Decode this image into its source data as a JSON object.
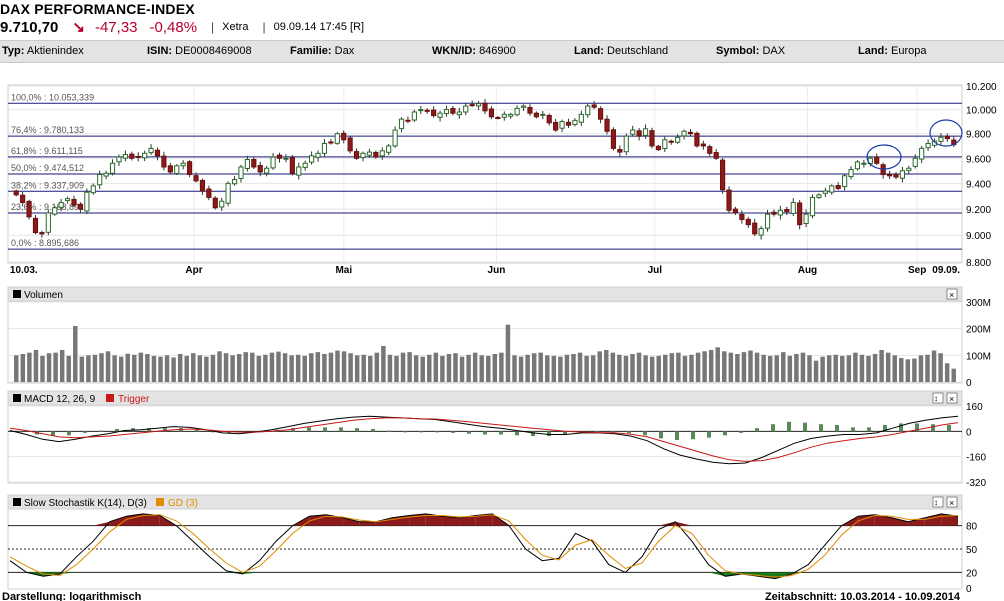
{
  "header": {
    "title": "DAX PERFORMANCE-INDEX",
    "price": "9.710,70",
    "change": "-47,33",
    "change_pct": "-0,48%",
    "exchange": "Xetra",
    "datetime": "09.09.14 17:45 [R]",
    "down_color": "#b8002d"
  },
  "infobar": [
    {
      "label": "Typ:",
      "value": "Aktienindex"
    },
    {
      "label": "ISIN:",
      "value": "DE0008469008"
    },
    {
      "label": "Familie:",
      "value": "Dax"
    },
    {
      "label": "WKN/ID:",
      "value": "846900"
    },
    {
      "label": "Land:",
      "value": "Deutschland"
    },
    {
      "label": "Symbol:",
      "value": "DAX"
    },
    {
      "label": "Land:",
      "value": "Europa"
    }
  ],
  "footer": {
    "scale_label": "Darstellung: logarithmisch",
    "period_label": "Zeitabschnitt: 10.03.2014 - 10.09.2014"
  },
  "icons": [
    "close-icon",
    "expand-icon"
  ],
  "chart_data": [
    {
      "type": "candlestick",
      "x_labels": [
        "10.03.",
        "Apr",
        "Mai",
        "Jun",
        "Jul",
        "Aug",
        "Sep",
        "09.09."
      ],
      "yticks": [
        "10.200",
        "10.000",
        "9.800",
        "9.600",
        "9.400",
        "9.200",
        "9.000",
        "8.800"
      ],
      "ylim": [
        8800,
        10200
      ],
      "scale": "log",
      "fib_levels": [
        {
          "label": "100,0% : 10.053,339",
          "value": 10053.339
        },
        {
          "label": "76,4% : 9.780,133",
          "value": 9780.133
        },
        {
          "label": "61,8% : 9.611,115",
          "value": 9611.115
        },
        {
          "label": "50,0% : 9.474,512",
          "value": 9474.512
        },
        {
          "label": "38,2% : 9.337,909",
          "value": 9337.909
        },
        {
          "label": "23,6% : 9.168,891",
          "value": 9168.891
        },
        {
          "label": "0,0% : 8.895,686",
          "value": 8895.686
        }
      ],
      "closes": [
        9310,
        9250,
        9140,
        9020,
        9010,
        9170,
        9210,
        9250,
        9280,
        9230,
        9200,
        9330,
        9380,
        9470,
        9480,
        9560,
        9610,
        9630,
        9600,
        9610,
        9640,
        9680,
        9620,
        9530,
        9490,
        9540,
        9560,
        9470,
        9420,
        9340,
        9290,
        9210,
        9260,
        9400,
        9430,
        9530,
        9590,
        9530,
        9490,
        9520,
        9610,
        9600,
        9600,
        9480,
        9530,
        9560,
        9620,
        9640,
        9720,
        9730,
        9800,
        9750,
        9660,
        9600,
        9640,
        9650,
        9610,
        9660,
        9700,
        9830,
        9920,
        9910,
        9980,
        10000,
        9990,
        9950,
        9970,
        10000,
        9970,
        9980,
        10030,
        10040,
        10050,
        9990,
        9940,
        9930,
        9960,
        9960,
        10010,
        10030,
        9970,
        9940,
        9960,
        9890,
        9830,
        9900,
        9870,
        9910,
        9960,
        10030,
        10020,
        9920,
        9820,
        9680,
        9650,
        9780,
        9830,
        9780,
        9840,
        9700,
        9670,
        9750,
        9730,
        9770,
        9820,
        9800,
        9700,
        9700,
        9640,
        9600,
        9350,
        9190,
        9170,
        9120,
        9080,
        9010,
        9050,
        9160,
        9160,
        9190,
        9180,
        9250,
        9080,
        9160,
        9290,
        9310,
        9340,
        9380,
        9360,
        9460,
        9510,
        9570,
        9560,
        9600,
        9560,
        9470,
        9460,
        9450,
        9500,
        9520,
        9600,
        9680,
        9720,
        9740,
        9770,
        9760,
        9710
      ],
      "highlight_circles": 2
    },
    {
      "type": "bar",
      "title": "Volumen",
      "yticks": [
        "300M",
        "200M",
        "100M",
        "0"
      ],
      "ylim": [
        0,
        300
      ],
      "values": [
        100,
        105,
        110,
        120,
        98,
        108,
        110,
        120,
        98,
        210,
        95,
        100,
        102,
        108,
        115,
        100,
        95,
        106,
        102,
        110,
        105,
        98,
        95,
        100,
        92,
        105,
        98,
        108,
        100,
        95,
        102,
        115,
        108,
        100,
        105,
        112,
        110,
        98,
        102,
        110,
        114,
        108,
        100,
        102,
        98,
        108,
        112,
        105,
        110,
        118,
        115,
        108,
        100,
        102,
        98,
        110,
        135,
        102,
        98,
        110,
        112,
        100,
        95,
        102,
        110,
        98,
        105,
        108,
        95,
        102,
        110,
        100,
        98,
        105,
        110,
        215,
        100,
        95,
        102,
        108,
        110,
        100,
        98,
        95,
        102,
        105,
        110,
        98,
        100,
        115,
        120,
        110,
        102,
        98,
        105,
        110,
        100,
        95,
        98,
        102,
        108,
        110,
        98,
        102,
        110,
        115,
        120,
        130,
        115,
        110,
        105,
        112,
        118,
        110,
        102,
        98,
        100,
        112,
        98,
        105,
        110,
        100,
        80,
        95,
        100,
        102,
        98,
        100,
        110,
        102,
        98,
        105,
        120,
        110,
        100,
        90,
        85,
        88,
        100,
        102,
        118,
        108,
        70,
        50
      ]
    },
    {
      "type": "line",
      "title": "MACD 12, 26, 9",
      "legend": [
        "MACD 12, 26, 9",
        "Trigger"
      ],
      "yticks": [
        "160",
        "0",
        "-160",
        "-320"
      ],
      "ylim": [
        -320,
        160
      ],
      "series": [
        {
          "name": "MACD 12, 26, 9",
          "color": "#000000",
          "values": [
            5,
            -20,
            -50,
            -65,
            -50,
            -30,
            -15,
            5,
            10,
            20,
            30,
            25,
            10,
            -10,
            -15,
            -5,
            10,
            30,
            50,
            65,
            80,
            90,
            95,
            90,
            85,
            80,
            75,
            60,
            45,
            30,
            20,
            5,
            -10,
            -20,
            -20,
            -10,
            -10,
            -15,
            -30,
            -60,
            -110,
            -150,
            -175,
            -195,
            -205,
            -200,
            -165,
            -120,
            -75,
            -45,
            -30,
            -20,
            -20,
            -10,
            20,
            50,
            70,
            85,
            95
          ]
        },
        {
          "name": "Trigger",
          "color": "#c81818",
          "values": [
            20,
            5,
            -15,
            -35,
            -40,
            -35,
            -30,
            -20,
            -10,
            0,
            10,
            15,
            10,
            0,
            -5,
            -5,
            0,
            10,
            25,
            40,
            55,
            70,
            80,
            85,
            85,
            80,
            78,
            70,
            60,
            50,
            40,
            30,
            20,
            10,
            0,
            -5,
            -8,
            -10,
            -18,
            -35,
            -65,
            -95,
            -125,
            -155,
            -180,
            -190,
            -185,
            -165,
            -135,
            -100,
            -75,
            -60,
            -45,
            -35,
            -20,
            0,
            20,
            40,
            55
          ]
        }
      ],
      "histogram": [
        -5,
        -20,
        -30,
        -25,
        -10,
        5,
        15,
        20,
        20,
        20,
        20,
        10,
        0,
        -10,
        -10,
        0,
        10,
        20,
        25,
        25,
        25,
        20,
        15,
        5,
        0,
        0,
        -3,
        -10,
        -15,
        -20,
        -20,
        -25,
        -30,
        -30,
        -20,
        -5,
        -2,
        -5,
        -12,
        -25,
        -45,
        -55,
        -50,
        -40,
        -25,
        -10,
        20,
        45,
        60,
        55,
        45,
        40,
        25,
        25,
        40,
        50,
        50,
        45,
        40
      ]
    },
    {
      "type": "line",
      "title": "Slow Stochastik K(14), D(3)",
      "legend": [
        "Slow Stochastik K(14), D(3)",
        "GD (3)"
      ],
      "yticks": [
        "80",
        "50",
        "20",
        "0"
      ],
      "ylim": [
        0,
        100
      ],
      "levels": [
        80,
        50,
        20
      ],
      "series": [
        {
          "name": "Slow Stochastik K(14), D(3)",
          "color": "#000000",
          "values": [
            35,
            20,
            15,
            18,
            40,
            60,
            85,
            92,
            95,
            93,
            80,
            60,
            40,
            22,
            18,
            35,
            60,
            80,
            92,
            94,
            90,
            85,
            85,
            90,
            93,
            95,
            92,
            90,
            93,
            95,
            80,
            50,
            35,
            38,
            70,
            60,
            30,
            20,
            40,
            75,
            85,
            60,
            30,
            15,
            18,
            15,
            12,
            18,
            30,
            55,
            80,
            92,
            94,
            90,
            85,
            90,
            95,
            92
          ]
        },
        {
          "name": "GD (3)",
          "color": "#e08c00",
          "values": [
            40,
            28,
            18,
            16,
            30,
            50,
            72,
            88,
            93,
            94,
            86,
            70,
            50,
            32,
            20,
            28,
            48,
            70,
            86,
            92,
            91,
            87,
            85,
            88,
            91,
            93,
            93,
            91,
            92,
            94,
            86,
            62,
            42,
            36,
            55,
            62,
            42,
            25,
            32,
            60,
            80,
            70,
            42,
            22,
            18,
            16,
            14,
            16,
            24,
            42,
            68,
            86,
            93,
            92,
            88,
            88,
            92,
            93
          ]
        }
      ]
    }
  ]
}
